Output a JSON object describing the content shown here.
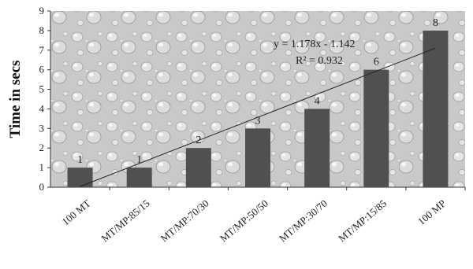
{
  "chart_data": {
    "type": "bar",
    "categories": [
      "100 MT",
      "MT/MP:85/15",
      "MT/MP:70/30",
      "MT/MP:50/50",
      "MT/MP:30/70",
      "MT/MP:15/85",
      "100 MP"
    ],
    "values": [
      1,
      1,
      2,
      3,
      4,
      6,
      8
    ],
    "data_labels": [
      "1",
      "1",
      "2",
      "3",
      "4",
      "6",
      "8"
    ],
    "ylabel": "Time in secs",
    "xlabel": "",
    "ylim": [
      0,
      9
    ],
    "yticks": [
      "0",
      "1",
      "2",
      "3",
      "4",
      "5",
      "6",
      "7",
      "8",
      "9"
    ],
    "grid": false,
    "background": "water-droplet texture",
    "bar_color": "#505050",
    "trendline": {
      "type": "linear",
      "slope": 1.178,
      "intercept": -1.142,
      "equation": "y = 1.178x - 1.142",
      "r_squared": "R² = 0.932"
    }
  }
}
